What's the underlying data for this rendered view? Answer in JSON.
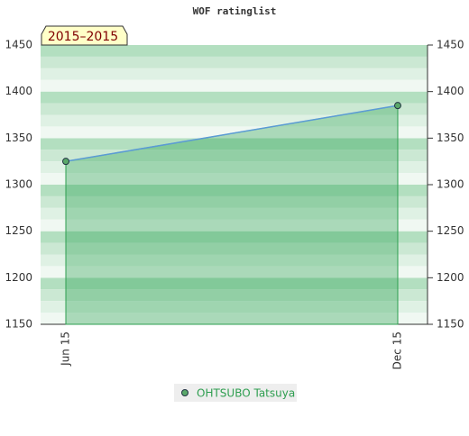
{
  "chart_data": {
    "type": "line",
    "title": "WOF ratinglist",
    "badge": "2015–2015",
    "categories": [
      "Jun 15",
      "Dec 15"
    ],
    "series": [
      {
        "name": "OHTSUBO Tatsuya",
        "color": "#5b9bd5",
        "values": [
          1325,
          1385
        ]
      }
    ],
    "ylim": [
      1150,
      1450
    ],
    "yticks": [
      1150,
      1200,
      1250,
      1300,
      1350,
      1400,
      1450
    ]
  }
}
